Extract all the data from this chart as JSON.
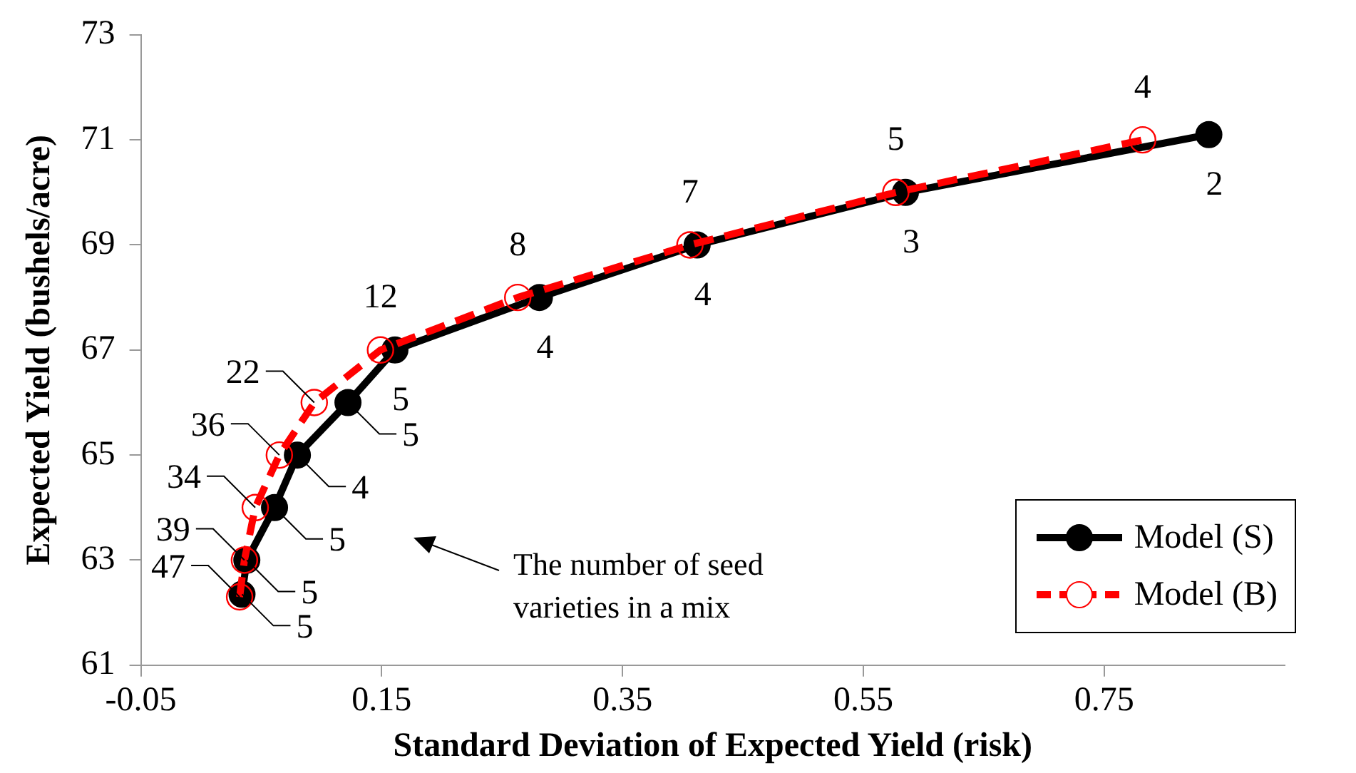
{
  "chart_data": {
    "type": "line",
    "xlabel": "Standard Deviation of Expected Yield (risk)",
    "ylabel": "Expected Yield (bushels/acre)",
    "xlim": [
      -0.05,
      0.9
    ],
    "xticks": [
      -0.05,
      0.15,
      0.35,
      0.55,
      0.75
    ],
    "ylim": [
      61,
      73
    ],
    "yticks": [
      61,
      63,
      65,
      67,
      69,
      71,
      73
    ],
    "grid": false,
    "legend": "bottom right",
    "marker": "circle",
    "series": [
      {
        "name": "Model (S)",
        "color": "#000000",
        "line_style": "solid",
        "x": [
          0.034,
          0.038,
          0.061,
          0.08,
          0.122,
          0.161,
          0.281,
          0.412,
          0.585,
          0.837
        ],
        "values": [
          62.35,
          63,
          64,
          65,
          66,
          67,
          68,
          69,
          70,
          71.1
        ]
      },
      {
        "name": "Model (B)",
        "color": "#ff0000",
        "line_style": "dashed",
        "x": [
          0.032,
          0.036,
          0.045,
          0.065,
          0.094,
          0.149,
          0.263,
          0.406,
          0.577,
          0.782
        ],
        "values": [
          62.3,
          63,
          64,
          65,
          66,
          67,
          68,
          69,
          70,
          71
        ]
      }
    ],
    "annotations": [
      {
        "text": "5",
        "x": 0.034,
        "y": 62.35
      },
      {
        "text": "5",
        "x": 0.038,
        "y": 63
      },
      {
        "text": "5",
        "x": 0.061,
        "y": 64
      },
      {
        "text": "4",
        "x": 0.08,
        "y": 65
      },
      {
        "text": "5",
        "x": 0.122,
        "y": 66
      },
      {
        "text": "5",
        "x": 0.161,
        "y": 67
      },
      {
        "text": "4",
        "x": 0.281,
        "y": 68
      },
      {
        "text": "4",
        "x": 0.412,
        "y": 69
      },
      {
        "text": "3",
        "x": 0.585,
        "y": 70
      },
      {
        "text": "2",
        "x": 0.837,
        "y": 71.1
      },
      {
        "text": "47",
        "x": 0.032,
        "y": 62.3
      },
      {
        "text": "39",
        "x": 0.036,
        "y": 63
      },
      {
        "text": "34",
        "x": 0.045,
        "y": 64
      },
      {
        "text": "36",
        "x": 0.065,
        "y": 65
      },
      {
        "text": "22",
        "x": 0.094,
        "y": 66
      },
      {
        "text": "12",
        "x": 0.149,
        "y": 67
      },
      {
        "text": "8",
        "x": 0.263,
        "y": 68
      },
      {
        "text": "7",
        "x": 0.406,
        "y": 69
      },
      {
        "text": "5",
        "x": 0.577,
        "y": 70
      },
      {
        "text": "4",
        "x": 0.782,
        "y": 71
      },
      "The number of seed varieties in a mix"
    ]
  }
}
